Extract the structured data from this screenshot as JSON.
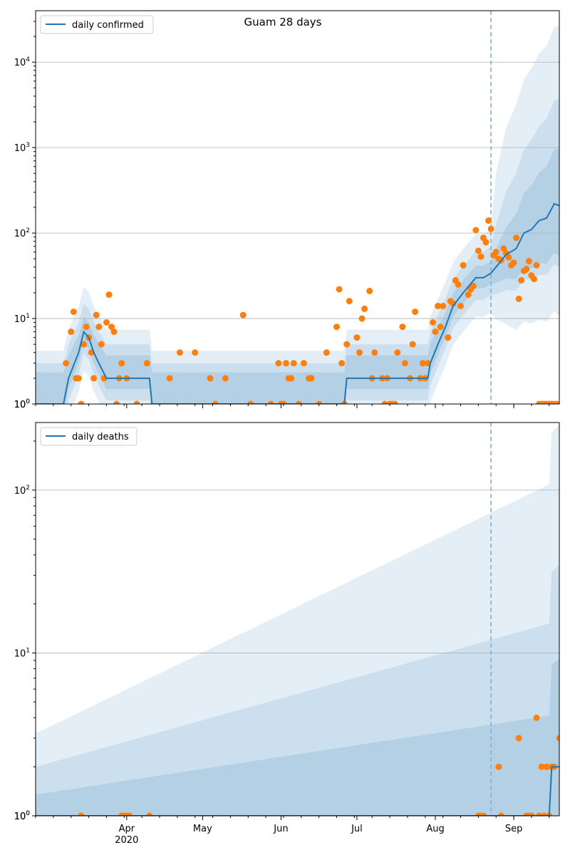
{
  "figure": {
    "title": "Guam 28 days"
  },
  "colors": {
    "line": "#1f77b4",
    "points": "#ff7f0e",
    "band": "#1f77b4",
    "grid": "#b0b0b0",
    "forecast_line": "#7fb0d6"
  },
  "chart_data": [
    {
      "type": "line",
      "title": "Guam 28 days",
      "xlabel": "",
      "ylabel": "",
      "yscale": "log",
      "ylim": [
        1,
        40000
      ],
      "xlim": [
        "2020-02-25",
        "2020-09-19"
      ],
      "grid": "horizontal",
      "legend_position": "top-left",
      "forecast_start": "2020-08-23",
      "y_tick_labels": [
        "10^1",
        "10^2",
        "10^3",
        "10^4"
      ],
      "series": [
        {
          "name": "daily confirmed",
          "style": "line",
          "x": [
            "2020-02-25",
            "2020-03-07",
            "2020-03-09",
            "2020-03-13",
            "2020-03-15",
            "2020-03-17",
            "2020-03-19",
            "2020-03-21",
            "2020-03-24",
            "2020-03-27",
            "2020-04-10",
            "2020-04-11",
            "2020-06-26",
            "2020-06-27",
            "2020-07-29",
            "2020-07-30",
            "2020-08-02",
            "2020-08-05",
            "2020-08-08",
            "2020-08-12",
            "2020-08-17",
            "2020-08-20",
            "2020-08-23",
            "2020-08-25",
            "2020-08-29",
            "2020-09-02",
            "2020-09-05",
            "2020-09-08",
            "2020-09-11",
            "2020-09-14",
            "2020-09-17",
            "2020-09-19"
          ],
          "y": [
            1,
            1,
            2,
            4,
            7,
            6,
            4,
            3,
            2,
            2,
            2,
            1,
            1,
            2,
            2,
            3,
            5,
            8,
            14,
            20,
            30,
            30,
            34,
            40,
            56,
            66,
            100,
            110,
            140,
            150,
            220,
            210
          ]
        },
        {
          "name": "",
          "style": "points",
          "x": [
            "2020-03-08",
            "2020-03-10",
            "2020-03-11",
            "2020-03-12",
            "2020-03-13",
            "2020-03-14",
            "2020-03-15",
            "2020-03-16",
            "2020-03-17",
            "2020-03-18",
            "2020-03-19",
            "2020-03-20",
            "2020-03-21",
            "2020-03-22",
            "2020-03-23",
            "2020-03-24",
            "2020-03-25",
            "2020-03-26",
            "2020-03-27",
            "2020-03-28",
            "2020-03-29",
            "2020-03-30",
            "2020-04-01",
            "2020-04-05",
            "2020-04-09",
            "2020-04-18",
            "2020-04-22",
            "2020-04-28",
            "2020-05-04",
            "2020-05-06",
            "2020-05-10",
            "2020-05-17",
            "2020-05-20",
            "2020-05-28",
            "2020-05-31",
            "2020-06-01",
            "2020-06-02",
            "2020-06-03",
            "2020-06-04",
            "2020-06-05",
            "2020-06-06",
            "2020-06-08",
            "2020-06-10",
            "2020-06-12",
            "2020-06-13",
            "2020-06-16",
            "2020-06-19",
            "2020-06-23",
            "2020-06-24",
            "2020-06-25",
            "2020-06-26",
            "2020-06-27",
            "2020-06-28",
            "2020-07-01",
            "2020-07-02",
            "2020-07-03",
            "2020-07-04",
            "2020-07-06",
            "2020-07-07",
            "2020-07-08",
            "2020-07-11",
            "2020-07-12",
            "2020-07-13",
            "2020-07-14",
            "2020-07-15",
            "2020-07-16",
            "2020-07-17",
            "2020-07-19",
            "2020-07-20",
            "2020-07-22",
            "2020-07-23",
            "2020-07-24",
            "2020-07-26",
            "2020-07-27",
            "2020-07-28",
            "2020-07-29",
            "2020-07-31",
            "2020-08-01",
            "2020-08-02",
            "2020-08-03",
            "2020-08-04",
            "2020-08-06",
            "2020-08-07",
            "2020-08-08",
            "2020-08-09",
            "2020-08-10",
            "2020-08-11",
            "2020-08-12",
            "2020-08-14",
            "2020-08-15",
            "2020-08-16",
            "2020-08-17",
            "2020-08-18",
            "2020-08-19",
            "2020-08-20",
            "2020-08-21",
            "2020-08-22",
            "2020-08-23",
            "2020-08-24",
            "2020-08-25",
            "2020-08-26",
            "2020-08-27",
            "2020-08-28",
            "2020-08-29",
            "2020-08-30",
            "2020-08-31",
            "2020-09-01",
            "2020-09-02",
            "2020-09-03",
            "2020-09-04",
            "2020-09-05",
            "2020-09-06",
            "2020-09-07",
            "2020-09-08",
            "2020-09-09",
            "2020-09-10",
            "2020-09-11",
            "2020-09-12",
            "2020-09-13",
            "2020-09-14",
            "2020-09-15",
            "2020-09-16",
            "2020-09-17",
            "2020-09-18"
          ],
          "y": [
            3,
            7,
            12,
            2,
            2,
            1,
            5,
            8,
            6,
            4,
            2,
            11,
            8,
            5,
            2,
            9,
            19,
            8,
            7,
            1,
            2,
            3,
            2,
            1,
            3,
            2,
            4,
            4,
            2,
            1,
            2,
            11,
            1,
            1,
            3,
            1,
            1,
            3,
            2,
            2,
            3,
            1,
            3,
            2,
            2,
            1,
            4,
            8,
            22,
            3,
            1,
            5,
            16,
            6,
            4,
            10,
            13,
            21,
            2,
            4,
            2,
            1,
            2,
            1,
            1,
            1,
            4,
            8,
            3,
            2,
            5,
            12,
            2,
            3,
            2,
            3,
            9,
            7,
            14,
            8,
            14,
            6,
            16,
            15,
            28,
            25,
            14,
            42,
            19,
            22,
            24,
            108,
            62,
            53,
            88,
            78,
            140,
            112,
            55,
            60,
            50,
            48,
            66,
            58,
            52,
            42,
            45,
            88,
            17,
            28,
            36,
            38,
            47,
            32,
            29,
            42,
            1,
            1,
            1,
            1,
            1,
            1,
            1,
            1
          ],
          "note_x_missing": ""
        }
      ]
    },
    {
      "type": "line",
      "title": "",
      "xlabel": "",
      "ylabel": "",
      "yscale": "log",
      "ylim": [
        1,
        260
      ],
      "xlim": [
        "2020-02-25",
        "2020-09-19"
      ],
      "grid": "horizontal",
      "legend_position": "top-left",
      "forecast_start": "2020-08-23",
      "y_tick_labels": [
        "10^1",
        "10^2"
      ],
      "x_tick_labels": [
        "Apr\n2020",
        "May",
        "Jun",
        "Jul",
        "Aug",
        "Sep"
      ],
      "x_tick_dates": [
        "2020-04-01",
        "2020-05-01",
        "2020-06-01",
        "2020-07-01",
        "2020-08-01",
        "2020-09-01"
      ],
      "series": [
        {
          "name": "daily deaths",
          "style": "line",
          "x": [
            "2020-02-25",
            "2020-09-15",
            "2020-09-16",
            "2020-09-19"
          ],
          "y": [
            1,
            1,
            2,
            2
          ]
        },
        {
          "name": "",
          "style": "points",
          "x": [
            "2020-03-14",
            "2020-03-30",
            "2020-03-31",
            "2020-04-01",
            "2020-04-02",
            "2020-04-10",
            "2020-08-18",
            "2020-08-19",
            "2020-08-20",
            "2020-08-26",
            "2020-08-27",
            "2020-09-03",
            "2020-09-06",
            "2020-09-07",
            "2020-09-08",
            "2020-09-10",
            "2020-09-11",
            "2020-09-12",
            "2020-09-13",
            "2020-09-14",
            "2020-09-15",
            "2020-09-16",
            "2020-09-17",
            "2020-09-19"
          ],
          "y": [
            1,
            1,
            1,
            1,
            1,
            1,
            1,
            1,
            1,
            2,
            1,
            3,
            1,
            1,
            1,
            4,
            1,
            2,
            1,
            2,
            1,
            2,
            2,
            3
          ]
        }
      ]
    }
  ]
}
